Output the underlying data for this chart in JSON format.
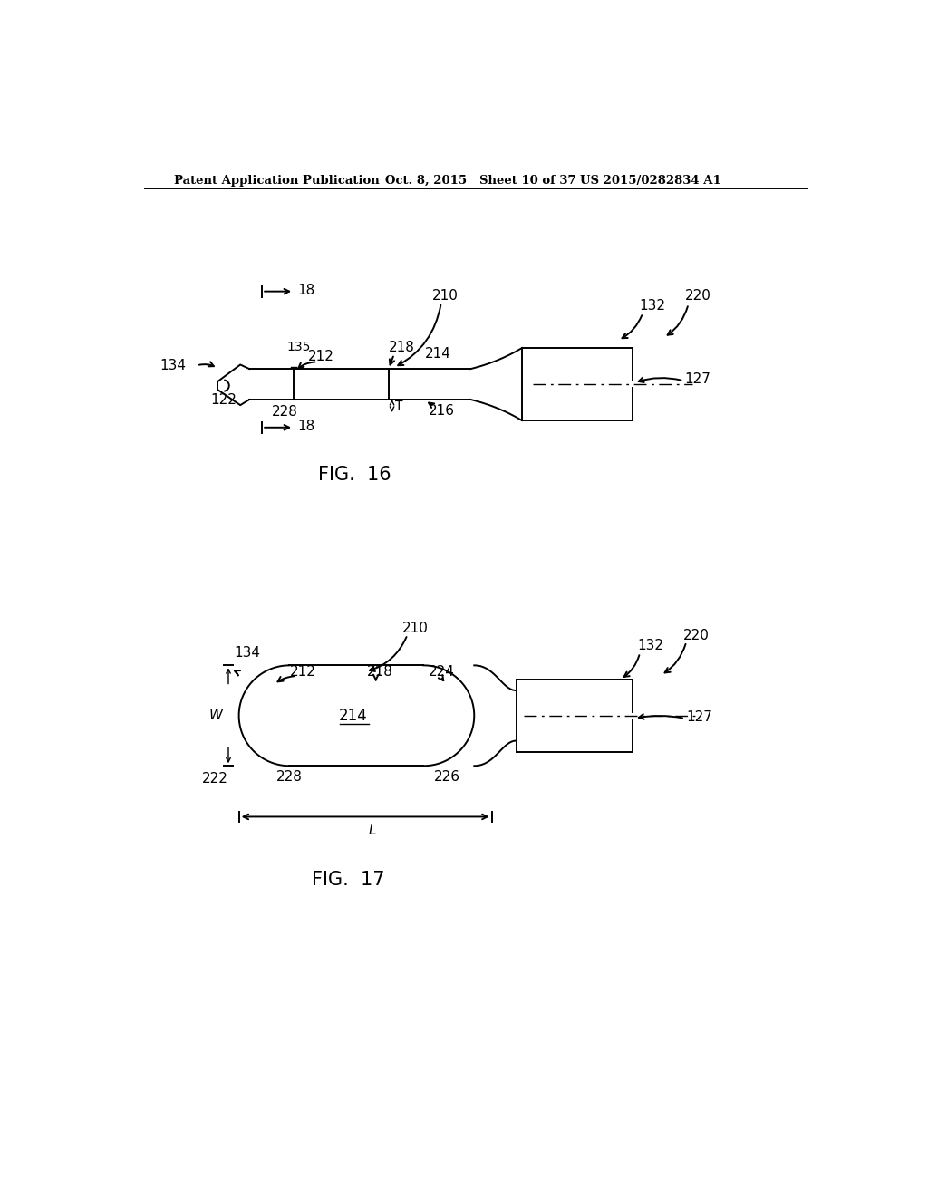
{
  "bg_color": "#ffffff",
  "header_left": "Patent Application Publication",
  "header_center": "Oct. 8, 2015   Sheet 10 of 37",
  "header_right": "US 2015/0282834 A1",
  "fig16_caption": "FIG.  16",
  "fig17_caption": "FIG.  17"
}
